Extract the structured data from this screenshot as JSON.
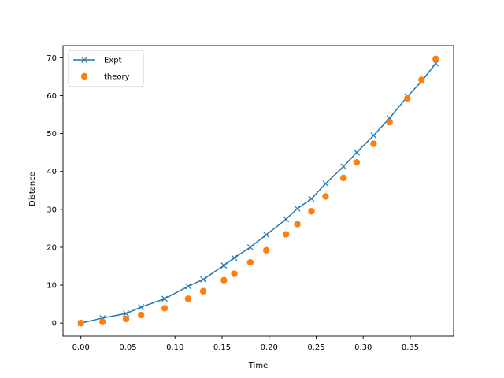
{
  "chart_data": {
    "type": "line",
    "title": "",
    "xlabel": "Time",
    "ylabel": "Distance",
    "xlim": [
      -0.019,
      0.396
    ],
    "ylim": [
      -3.5,
      73.2
    ],
    "xticks": [
      0.0,
      0.05,
      0.1,
      0.15,
      0.2,
      0.25,
      0.3,
      0.35
    ],
    "xtick_labels": [
      "0.00",
      "0.05",
      "0.10",
      "0.15",
      "0.20",
      "0.25",
      "0.30",
      "0.35"
    ],
    "yticks": [
      0,
      10,
      20,
      30,
      40,
      50,
      60,
      70
    ],
    "ytick_labels": [
      "0",
      "10",
      "20",
      "30",
      "40",
      "50",
      "60",
      "70"
    ],
    "grid": false,
    "legend_position": "top-left",
    "series": [
      {
        "name": "Expt",
        "style": "line-with-x-markers",
        "color": "#1f77b4",
        "x": [
          0.0,
          0.023,
          0.048,
          0.064,
          0.089,
          0.114,
          0.13,
          0.152,
          0.163,
          0.18,
          0.197,
          0.218,
          0.23,
          0.245,
          0.26,
          0.279,
          0.293,
          0.311,
          0.328,
          0.347,
          0.362,
          0.377
        ],
        "y": [
          0.0,
          1.3,
          2.5,
          4.2,
          6.4,
          9.7,
          11.5,
          15.2,
          17.2,
          20.0,
          23.3,
          27.4,
          30.2,
          32.8,
          36.8,
          41.3,
          45.0,
          49.5,
          54.1,
          59.8,
          63.8,
          68.5
        ]
      },
      {
        "name": "theory",
        "style": "circle-markers",
        "color": "#ff7f0e",
        "x": [
          0.0,
          0.023,
          0.048,
          0.064,
          0.089,
          0.114,
          0.13,
          0.152,
          0.163,
          0.18,
          0.197,
          0.218,
          0.23,
          0.245,
          0.26,
          0.279,
          0.293,
          0.311,
          0.328,
          0.347,
          0.362,
          0.377
        ],
        "y": [
          0.0,
          0.3,
          1.1,
          2.1,
          3.9,
          6.4,
          8.4,
          11.3,
          13.0,
          16.0,
          19.2,
          23.4,
          26.1,
          29.5,
          33.4,
          38.3,
          42.4,
          47.3,
          53.0,
          59.3,
          64.2,
          69.7
        ]
      }
    ]
  }
}
